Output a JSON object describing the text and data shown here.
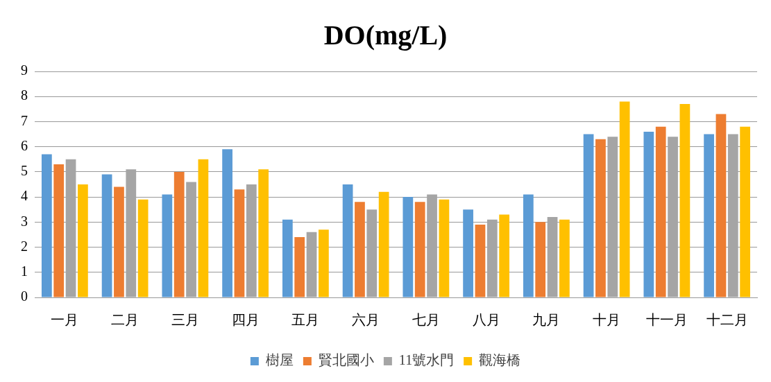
{
  "chart_data": {
    "type": "bar",
    "title": "DO(mg/L)",
    "categories": [
      "一月",
      "二月",
      "三月",
      "四月",
      "五月",
      "六月",
      "七月",
      "八月",
      "九月",
      "十月",
      "十一月",
      "十二月"
    ],
    "series": [
      {
        "name": "樹屋",
        "color": "#5b9bd5",
        "values": [
          5.7,
          4.9,
          4.1,
          5.9,
          3.1,
          4.5,
          4.0,
          3.5,
          4.1,
          6.5,
          6.6,
          6.5
        ]
      },
      {
        "name": "賢北國小",
        "color": "#ed7d31",
        "values": [
          5.3,
          4.4,
          5.0,
          4.3,
          2.4,
          3.8,
          3.8,
          2.9,
          3.0,
          6.3,
          6.8,
          7.3
        ]
      },
      {
        "name": "11號水門",
        "color": "#a5a5a5",
        "values": [
          5.5,
          5.1,
          4.6,
          4.5,
          2.6,
          3.5,
          4.1,
          3.1,
          3.2,
          6.4,
          6.4,
          6.5
        ]
      },
      {
        "name": "觀海橋",
        "color": "#ffc000",
        "values": [
          4.5,
          3.9,
          5.5,
          5.1,
          2.7,
          4.2,
          3.9,
          3.3,
          3.1,
          7.8,
          7.7,
          6.8
        ]
      }
    ],
    "ylim": [
      0,
      9
    ],
    "yticks": [
      0,
      1,
      2,
      3,
      4,
      5,
      6,
      7,
      8,
      9
    ],
    "grid": "y",
    "legend": "bottom"
  }
}
